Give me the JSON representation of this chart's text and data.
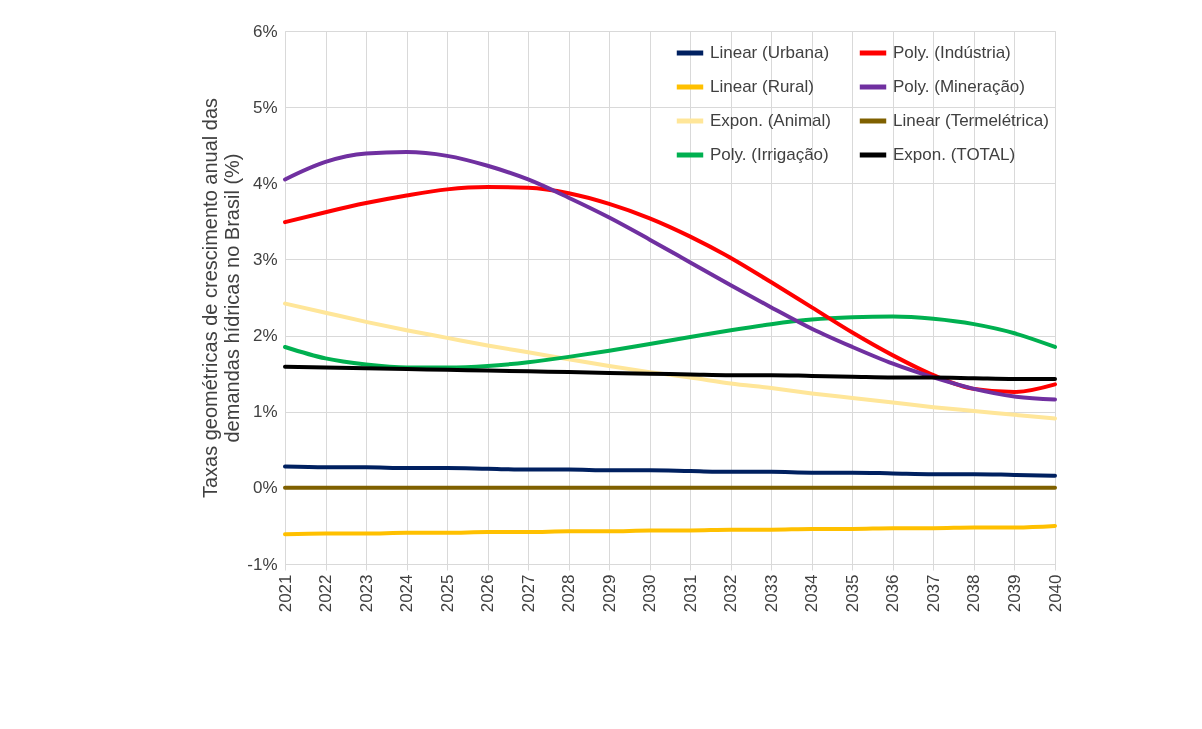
{
  "chart_data": {
    "type": "line",
    "ylabel": "Taxas geométricas de crescimento anual das demandas hídricas no Brasil (%)",
    "categories": [
      "2021",
      "2022",
      "2023",
      "2024",
      "2025",
      "2026",
      "2027",
      "2028",
      "2029",
      "2030",
      "2031",
      "2032",
      "2033",
      "2034",
      "2035",
      "2036",
      "2037",
      "2038",
      "2039",
      "2040"
    ],
    "series": [
      {
        "name": "Linear (Urbana)",
        "color": "#002060",
        "values": [
          0.28,
          0.27,
          0.27,
          0.26,
          0.26,
          0.25,
          0.24,
          0.24,
          0.23,
          0.23,
          0.22,
          0.21,
          0.21,
          0.2,
          0.2,
          0.19,
          0.18,
          0.18,
          0.17,
          0.16
        ]
      },
      {
        "name": "Linear (Rural)",
        "color": "#ffc000",
        "values": [
          -0.61,
          -0.6,
          -0.6,
          -0.59,
          -0.59,
          -0.58,
          -0.58,
          -0.57,
          -0.57,
          -0.56,
          -0.56,
          -0.55,
          -0.55,
          -0.54,
          -0.54,
          -0.53,
          -0.53,
          -0.52,
          -0.52,
          -0.5
        ]
      },
      {
        "name": "Expon. (Animal)",
        "color": "#ffe699",
        "values": [
          2.42,
          2.3,
          2.18,
          2.07,
          1.97,
          1.87,
          1.78,
          1.69,
          1.6,
          1.52,
          1.45,
          1.37,
          1.31,
          1.24,
          1.18,
          1.12,
          1.06,
          1.01,
          0.96,
          0.91
        ]
      },
      {
        "name": "Poly. (Irrigação)",
        "color": "#00b050",
        "values": [
          1.85,
          1.7,
          1.62,
          1.58,
          1.58,
          1.6,
          1.65,
          1.72,
          1.8,
          1.89,
          1.98,
          2.07,
          2.15,
          2.21,
          2.24,
          2.25,
          2.22,
          2.15,
          2.03,
          1.85
        ]
      },
      {
        "name": "Poly. (Indústria)",
        "color": "#ff0000",
        "values": [
          3.49,
          3.62,
          3.74,
          3.84,
          3.92,
          3.95,
          3.94,
          3.87,
          3.73,
          3.54,
          3.3,
          3.02,
          2.7,
          2.37,
          2.04,
          1.74,
          1.48,
          1.3,
          1.26,
          1.36
        ]
      },
      {
        "name": "Poly. (Mineração)",
        "color": "#7030a0",
        "values": [
          4.05,
          4.28,
          4.39,
          4.41,
          4.36,
          4.23,
          4.05,
          3.81,
          3.55,
          3.26,
          2.96,
          2.66,
          2.37,
          2.09,
          1.85,
          1.63,
          1.45,
          1.3,
          1.2,
          1.16
        ]
      },
      {
        "name": "Linear (Termelétrica)",
        "color": "#7f6000",
        "values": [
          0,
          0,
          0,
          0,
          0,
          0,
          0,
          0,
          0,
          0,
          0,
          0,
          0,
          0,
          0,
          0,
          0,
          0,
          0,
          0
        ]
      },
      {
        "name": "Expon. (TOTAL)",
        "color": "#000000",
        "values": [
          1.59,
          1.58,
          1.57,
          1.56,
          1.55,
          1.54,
          1.53,
          1.52,
          1.51,
          1.5,
          1.49,
          1.48,
          1.48,
          1.47,
          1.46,
          1.45,
          1.45,
          1.44,
          1.43,
          1.43
        ]
      }
    ],
    "ylim": [
      -1,
      6
    ],
    "yticks": [
      {
        "value": -1,
        "label": "-1%"
      },
      {
        "value": 0,
        "label": "0%"
      },
      {
        "value": 1,
        "label": "1%"
      },
      {
        "value": 2,
        "label": "2%"
      },
      {
        "value": 3,
        "label": "3%"
      },
      {
        "value": 4,
        "label": "4%"
      },
      {
        "value": 5,
        "label": "5%"
      },
      {
        "value": 6,
        "label": "6%"
      }
    ],
    "grid": true,
    "legend": "top right",
    "line_style": "solid",
    "marker": "none"
  }
}
